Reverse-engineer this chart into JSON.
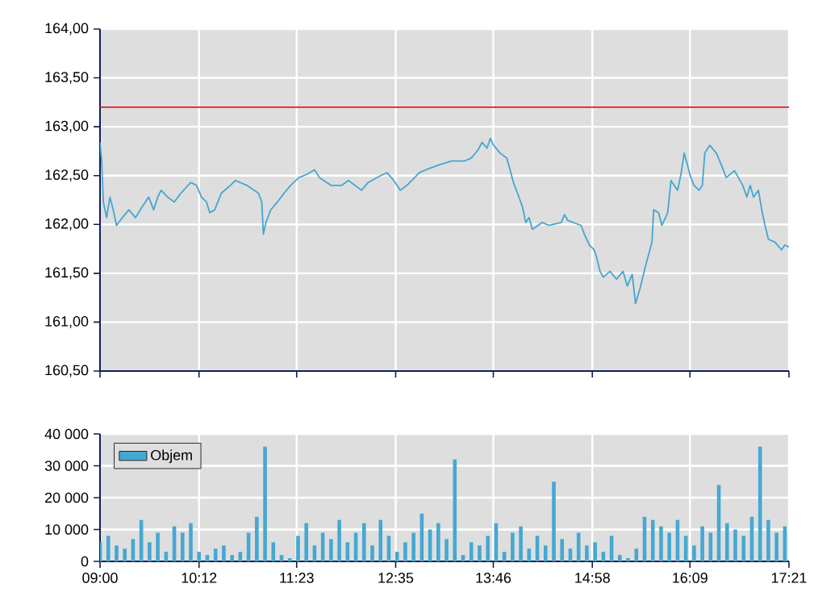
{
  "chart_data": [
    {
      "type": "line",
      "tick_labels": "y",
      "grid": true,
      "xlim": [
        9.0,
        17.35
      ],
      "xticks": [
        {
          "value": 9.0,
          "label": null
        },
        {
          "value": 10.2,
          "label": null
        },
        {
          "value": 11.3833,
          "label": null
        },
        {
          "value": 12.5833,
          "label": null
        },
        {
          "value": 13.7667,
          "label": null
        },
        {
          "value": 14.9667,
          "label": null
        },
        {
          "value": 16.15,
          "label": null
        },
        {
          "value": 17.35,
          "label": null
        }
      ],
      "ylim": [
        160.5,
        164
      ],
      "yticks": [
        {
          "value": 160.5,
          "label": "160,50"
        },
        {
          "value": 161,
          "label": "161,00"
        },
        {
          "value": 161.5,
          "label": "161,50"
        },
        {
          "value": 162,
          "label": "162,00"
        },
        {
          "value": 162.5,
          "label": "162,50"
        },
        {
          "value": 163,
          "label": "163,00"
        },
        {
          "value": 163.5,
          "label": "163,50"
        },
        {
          "value": 164,
          "label": "164,00"
        }
      ],
      "ref_lines": [
        {
          "axis": "y",
          "value": 163.2,
          "color": "#dd2222"
        }
      ],
      "series": [
        {
          "color": "#45a5d2",
          "x": [
            9.0,
            9.02,
            9.04,
            9.08,
            9.12,
            9.16,
            9.2,
            9.27,
            9.35,
            9.43,
            9.51,
            9.59,
            9.65,
            9.7,
            9.74,
            9.82,
            9.9,
            9.98,
            10.1,
            10.17,
            10.23,
            10.29,
            10.33,
            10.39,
            10.47,
            10.58,
            10.64,
            10.78,
            10.92,
            10.96,
            10.98,
            11.01,
            11.07,
            11.15,
            11.23,
            11.31,
            11.41,
            11.5,
            11.6,
            11.66,
            11.8,
            11.93,
            12.01,
            12.17,
            12.25,
            12.4,
            12.48,
            12.56,
            12.64,
            12.72,
            12.87,
            12.95,
            13.11,
            13.26,
            13.42,
            13.5,
            13.58,
            13.63,
            13.69,
            13.73,
            13.77,
            13.85,
            13.93,
            13.97,
            14.01,
            14.06,
            14.12,
            14.16,
            14.2,
            14.24,
            14.36,
            14.44,
            14.59,
            14.63,
            14.67,
            14.83,
            14.87,
            14.93,
            14.99,
            15.02,
            15.06,
            15.1,
            15.18,
            15.26,
            15.34,
            15.39,
            15.45,
            15.49,
            15.55,
            15.61,
            15.69,
            15.71,
            15.77,
            15.81,
            15.88,
            15.92,
            16.0,
            16.04,
            16.08,
            16.12,
            16.16,
            16.2,
            16.26,
            16.3,
            16.33,
            16.39,
            16.47,
            16.53,
            16.59,
            16.69,
            16.79,
            16.84,
            16.88,
            16.92,
            16.98,
            17.02,
            17.06,
            17.1,
            17.18,
            17.26,
            17.3,
            17.35
          ],
          "values": [
            162.84,
            162.65,
            162.23,
            162.07,
            162.28,
            162.15,
            161.99,
            162.07,
            162.15,
            162.07,
            162.18,
            162.28,
            162.15,
            162.28,
            162.35,
            162.28,
            162.23,
            162.32,
            162.43,
            162.4,
            162.28,
            162.23,
            162.12,
            162.15,
            162.32,
            162.4,
            162.45,
            162.4,
            162.32,
            162.23,
            161.9,
            162.02,
            162.15,
            162.23,
            162.32,
            162.4,
            162.48,
            162.51,
            162.56,
            162.48,
            162.4,
            162.4,
            162.45,
            162.35,
            162.43,
            162.5,
            162.53,
            162.45,
            162.35,
            162.4,
            162.53,
            162.56,
            162.61,
            162.65,
            162.65,
            162.68,
            162.76,
            162.84,
            162.78,
            162.88,
            162.81,
            162.73,
            162.68,
            162.56,
            162.43,
            162.32,
            162.18,
            162.02,
            162.07,
            161.95,
            162.02,
            161.99,
            162.02,
            162.1,
            162.04,
            161.99,
            161.9,
            161.79,
            161.74,
            161.66,
            161.52,
            161.46,
            161.52,
            161.44,
            161.52,
            161.37,
            161.49,
            161.19,
            161.36,
            161.57,
            161.82,
            162.15,
            162.12,
            161.99,
            162.12,
            162.45,
            162.35,
            162.51,
            162.73,
            162.61,
            162.48,
            162.4,
            162.35,
            162.4,
            162.73,
            162.81,
            162.73,
            162.61,
            162.48,
            162.55,
            162.4,
            162.28,
            162.4,
            162.28,
            162.35,
            162.15,
            161.99,
            161.85,
            161.82,
            161.74,
            161.79,
            161.77
          ]
        }
      ]
    },
    {
      "type": "bar",
      "grid": true,
      "legend": "top left",
      "xlim": [
        9.0,
        17.35
      ],
      "xticks": [
        {
          "value": 9.0,
          "label": "09:00"
        },
        {
          "value": 10.2,
          "label": "10:12"
        },
        {
          "value": 11.3833,
          "label": "11:23"
        },
        {
          "value": 12.5833,
          "label": "12:35"
        },
        {
          "value": 13.7667,
          "label": "13:46"
        },
        {
          "value": 14.9667,
          "label": "14:58"
        },
        {
          "value": 16.15,
          "label": "16:09"
        },
        {
          "value": 17.35,
          "label": "17:21"
        }
      ],
      "ylim": [
        0,
        40000
      ],
      "yticks": [
        0,
        {
          "value": 10000,
          "label": "10 000"
        },
        {
          "value": 20000,
          "label": "20 000"
        },
        {
          "value": 30000,
          "label": "30 000"
        },
        {
          "value": 40000,
          "label": "40 000"
        }
      ],
      "series": [
        {
          "name": "Objem",
          "color": "#45a8d2",
          "x": [
            9.0,
            9.1,
            9.2,
            9.3,
            9.4,
            9.5,
            9.6,
            9.7,
            9.8,
            9.9,
            10.0,
            10.1,
            10.2,
            10.3,
            10.4,
            10.5,
            10.6,
            10.7,
            10.8,
            10.9,
            11.0,
            11.1,
            11.2,
            11.3,
            11.4,
            11.5,
            11.6,
            11.7,
            11.8,
            11.9,
            12.0,
            12.1,
            12.2,
            12.3,
            12.4,
            12.5,
            12.6,
            12.7,
            12.8,
            12.9,
            13.0,
            13.1,
            13.2,
            13.3,
            13.4,
            13.5,
            13.6,
            13.7,
            13.8,
            13.9,
            14.0,
            14.1,
            14.2,
            14.3,
            14.4,
            14.5,
            14.6,
            14.7,
            14.8,
            14.9,
            15.0,
            15.1,
            15.2,
            15.3,
            15.4,
            15.5,
            15.6,
            15.7,
            15.8,
            15.9,
            16.0,
            16.1,
            16.2,
            16.3,
            16.4,
            16.5,
            16.6,
            16.7,
            16.8,
            16.9,
            17.0,
            17.1,
            17.2,
            17.3
          ],
          "values": [
            6000,
            8000,
            5000,
            4000,
            7000,
            13000,
            6000,
            9000,
            3000,
            11000,
            9000,
            12000,
            3000,
            2000,
            4000,
            5000,
            2000,
            3000,
            9000,
            14000,
            36000,
            6000,
            2000,
            1000,
            8000,
            12000,
            5000,
            9000,
            7000,
            13000,
            6000,
            9000,
            12000,
            5000,
            13000,
            8000,
            3000,
            6000,
            9000,
            15000,
            10000,
            12000,
            7000,
            32000,
            2000,
            6000,
            5000,
            8000,
            12000,
            3000,
            9000,
            11000,
            4000,
            8000,
            5000,
            25000,
            7000,
            4000,
            9000,
            5000,
            6000,
            3000,
            8000,
            2000,
            1000,
            4000,
            14000,
            13000,
            11000,
            9000,
            13000,
            8000,
            5000,
            11000,
            9000,
            24000,
            12000,
            10000,
            8000,
            14000,
            36000,
            13000,
            9000,
            11000
          ]
        }
      ]
    }
  ]
}
